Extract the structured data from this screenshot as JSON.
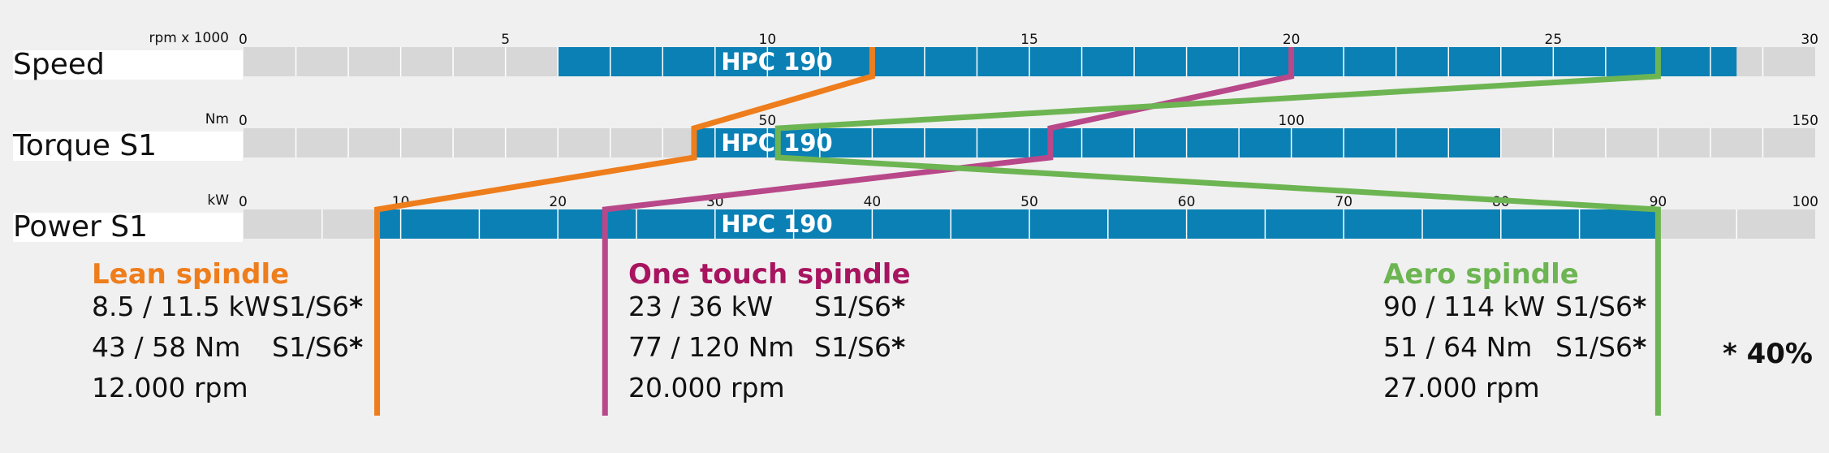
{
  "chart_data": {
    "type": "bar",
    "rows": [
      {
        "name": "Speed",
        "unit": "rpm x 1000",
        "axis_min": 0,
        "axis_max": 30,
        "minor_step": 1,
        "ticks": [
          "0",
          "5",
          "10",
          "15",
          "20",
          "25",
          "30"
        ],
        "tick_values": [
          0,
          5,
          10,
          15,
          20,
          25,
          30
        ],
        "range": [
          6,
          28.5
        ],
        "range_label": "HPC 190"
      },
      {
        "name": "Torque S1",
        "unit": "Nm",
        "axis_min": 0,
        "axis_max": 150,
        "minor_step": 5,
        "ticks": [
          "0",
          "50",
          "100",
          "150"
        ],
        "tick_values": [
          0,
          50,
          100,
          150
        ],
        "range": [
          43,
          120
        ],
        "range_label": "HPC 190"
      },
      {
        "name": "Power S1",
        "unit": "kW",
        "axis_min": 0,
        "axis_max": 100,
        "minor_step": 5,
        "ticks": [
          "0",
          "10",
          "20",
          "30",
          "40",
          "50",
          "60",
          "70",
          "80",
          "90",
          "100"
        ],
        "tick_values": [
          0,
          10,
          20,
          30,
          40,
          50,
          60,
          70,
          80,
          90,
          100
        ],
        "range": [
          8.5,
          90
        ],
        "range_label": "HPC 190"
      }
    ],
    "series": [
      {
        "name": "Lean spindle",
        "color": "#ee7d1c",
        "speed": 12,
        "torque": 43,
        "power": 8.5
      },
      {
        "name": "One touch spindle",
        "color": "#b84889",
        "speed": 20,
        "torque": 77,
        "power": 23
      },
      {
        "name": "Aero spindle",
        "color": "#6db552",
        "speed": 27,
        "torque": 51,
        "power": 90
      }
    ],
    "bar_color": "#0a80b5",
    "track_color": "#d7d7d7"
  },
  "specs": [
    {
      "title": "Lean spindle",
      "color": "#ee7d1c",
      "lines": [
        {
          "value": "8.5 / 11.5 kW",
          "mode": "S1/S6",
          "star": "*"
        },
        {
          "value": "43 / 58 Nm",
          "mode": "S1/S6",
          "star": "*"
        },
        {
          "value": "12.000 rpm",
          "mode": "",
          "star": ""
        }
      ]
    },
    {
      "title": "One touch spindle",
      "color": "#a8145f",
      "lines": [
        {
          "value": "23 / 36 kW",
          "mode": "S1/S6",
          "star": "*"
        },
        {
          "value": "77 / 120 Nm",
          "mode": "S1/S6",
          "star": "*"
        },
        {
          "value": "20.000 rpm",
          "mode": "",
          "star": ""
        }
      ]
    },
    {
      "title": "Aero spindle",
      "color": "#6db552",
      "lines": [
        {
          "value": "90 / 114 kW",
          "mode": "S1/S6",
          "star": "*"
        },
        {
          "value": "51 / 64 Nm",
          "mode": "S1/S6",
          "star": "*"
        },
        {
          "value": "27.000 rpm",
          "mode": "",
          "star": ""
        }
      ]
    }
  ],
  "footnote": "* 40%"
}
